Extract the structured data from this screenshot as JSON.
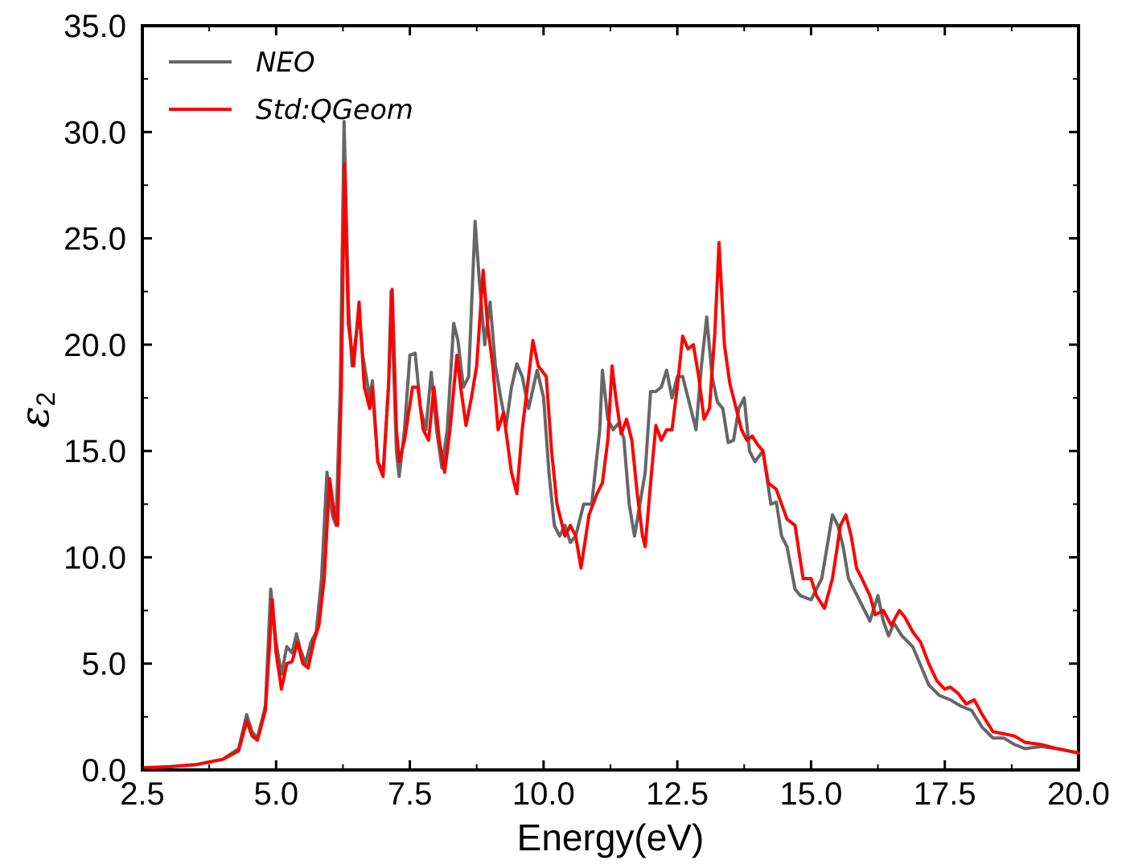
{
  "chart_data": {
    "type": "line",
    "xlabel": "Energy(eV)",
    "ylabel": {
      "symbol": "ε",
      "subscript": "2"
    },
    "xlim": [
      2.5,
      20.0
    ],
    "ylim": [
      0.0,
      35.0
    ],
    "xticks": [
      "2.5",
      "5.0",
      "7.5",
      "10.0",
      "12.5",
      "15.0",
      "17.5",
      "20.0"
    ],
    "yticks": [
      "0.0",
      "5.0",
      "10.0",
      "15.0",
      "20.0",
      "25.0",
      "30.0",
      "35.0"
    ],
    "grid": false,
    "legend_position": "top-left",
    "series": [
      {
        "name": "NEO",
        "color": "#666666",
        "points": [
          [
            2.5,
            0.1
          ],
          [
            3.0,
            0.15
          ],
          [
            3.5,
            0.25
          ],
          [
            4.0,
            0.5
          ],
          [
            4.3,
            1.0
          ],
          [
            4.45,
            2.6
          ],
          [
            4.55,
            1.8
          ],
          [
            4.65,
            1.5
          ],
          [
            4.8,
            3.0
          ],
          [
            4.9,
            8.5
          ],
          [
            5.0,
            6.0
          ],
          [
            5.1,
            4.5
          ],
          [
            5.2,
            5.8
          ],
          [
            5.3,
            5.5
          ],
          [
            5.38,
            6.4
          ],
          [
            5.45,
            5.7
          ],
          [
            5.55,
            5.0
          ],
          [
            5.65,
            6.0
          ],
          [
            5.75,
            6.5
          ],
          [
            5.85,
            9.0
          ],
          [
            5.95,
            14.0
          ],
          [
            6.05,
            12.0
          ],
          [
            6.12,
            11.5
          ],
          [
            6.2,
            18.0
          ],
          [
            6.27,
            30.5
          ],
          [
            6.35,
            22.0
          ],
          [
            6.42,
            19.0
          ],
          [
            6.55,
            21.5
          ],
          [
            6.62,
            19.5
          ],
          [
            6.75,
            17.5
          ],
          [
            6.8,
            18.3
          ],
          [
            6.9,
            14.5
          ],
          [
            7.0,
            14.0
          ],
          [
            7.1,
            18.0
          ],
          [
            7.15,
            22.5
          ],
          [
            7.25,
            15.0
          ],
          [
            7.3,
            13.8
          ],
          [
            7.4,
            16.0
          ],
          [
            7.5,
            19.5
          ],
          [
            7.6,
            19.6
          ],
          [
            7.7,
            17.0
          ],
          [
            7.8,
            16.0
          ],
          [
            7.9,
            18.7
          ],
          [
            8.0,
            16.0
          ],
          [
            8.1,
            14.2
          ],
          [
            8.2,
            16.0
          ],
          [
            8.32,
            21.0
          ],
          [
            8.4,
            20.2
          ],
          [
            8.5,
            18.0
          ],
          [
            8.6,
            18.5
          ],
          [
            8.72,
            25.8
          ],
          [
            8.8,
            23.0
          ],
          [
            8.9,
            20.0
          ],
          [
            9.0,
            22.0
          ],
          [
            9.1,
            19.0
          ],
          [
            9.2,
            17.5
          ],
          [
            9.3,
            16.2
          ],
          [
            9.4,
            18.0
          ],
          [
            9.5,
            19.1
          ],
          [
            9.6,
            18.5
          ],
          [
            9.72,
            17.0
          ],
          [
            9.88,
            18.8
          ],
          [
            10.0,
            17.5
          ],
          [
            10.1,
            14.0
          ],
          [
            10.2,
            11.5
          ],
          [
            10.3,
            11.0
          ],
          [
            10.4,
            11.5
          ],
          [
            10.5,
            10.7
          ],
          [
            10.6,
            11.0
          ],
          [
            10.75,
            12.5
          ],
          [
            10.9,
            12.5
          ],
          [
            11.05,
            16.0
          ],
          [
            11.1,
            18.8
          ],
          [
            11.2,
            16.5
          ],
          [
            11.3,
            16.0
          ],
          [
            11.4,
            16.3
          ],
          [
            11.5,
            15.6
          ],
          [
            11.6,
            12.5
          ],
          [
            11.7,
            11.0
          ],
          [
            11.8,
            12.5
          ],
          [
            11.9,
            14.0
          ],
          [
            12.0,
            17.8
          ],
          [
            12.1,
            17.8
          ],
          [
            12.2,
            18.0
          ],
          [
            12.3,
            18.8
          ],
          [
            12.4,
            17.5
          ],
          [
            12.5,
            18.5
          ],
          [
            12.6,
            18.5
          ],
          [
            12.75,
            17.0
          ],
          [
            12.85,
            16.0
          ],
          [
            12.95,
            19.0
          ],
          [
            13.05,
            21.3
          ],
          [
            13.15,
            18.5
          ],
          [
            13.25,
            17.3
          ],
          [
            13.35,
            17.0
          ],
          [
            13.45,
            15.4
          ],
          [
            13.55,
            15.5
          ],
          [
            13.65,
            17.0
          ],
          [
            13.75,
            17.5
          ],
          [
            13.85,
            15.0
          ],
          [
            13.95,
            14.5
          ],
          [
            14.1,
            15.0
          ],
          [
            14.25,
            12.5
          ],
          [
            14.35,
            12.6
          ],
          [
            14.45,
            11.0
          ],
          [
            14.55,
            10.5
          ],
          [
            14.7,
            8.5
          ],
          [
            14.8,
            8.2
          ],
          [
            15.0,
            8.0
          ],
          [
            15.2,
            9.0
          ],
          [
            15.4,
            12.0
          ],
          [
            15.5,
            11.5
          ],
          [
            15.6,
            10.5
          ],
          [
            15.7,
            9.0
          ],
          [
            15.9,
            8.0
          ],
          [
            16.1,
            7.0
          ],
          [
            16.25,
            8.2
          ],
          [
            16.35,
            7.0
          ],
          [
            16.45,
            6.3
          ],
          [
            16.55,
            6.9
          ],
          [
            16.7,
            6.3
          ],
          [
            16.9,
            5.8
          ],
          [
            17.0,
            5.2
          ],
          [
            17.2,
            4.0
          ],
          [
            17.4,
            3.5
          ],
          [
            17.6,
            3.3
          ],
          [
            17.8,
            3.0
          ],
          [
            18.0,
            2.8
          ],
          [
            18.2,
            2.0
          ],
          [
            18.4,
            1.5
          ],
          [
            18.6,
            1.5
          ],
          [
            18.8,
            1.2
          ],
          [
            19.0,
            1.0
          ],
          [
            19.3,
            1.1
          ],
          [
            19.6,
            1.0
          ],
          [
            20.0,
            0.8
          ]
        ]
      },
      {
        "name": "Std:QGeom",
        "color": "#ff0000",
        "points": [
          [
            2.5,
            0.1
          ],
          [
            3.0,
            0.15
          ],
          [
            3.5,
            0.25
          ],
          [
            4.0,
            0.5
          ],
          [
            4.3,
            0.9
          ],
          [
            4.45,
            2.3
          ],
          [
            4.55,
            1.6
          ],
          [
            4.65,
            1.4
          ],
          [
            4.8,
            2.8
          ],
          [
            4.93,
            8.0
          ],
          [
            5.0,
            5.5
          ],
          [
            5.1,
            3.8
          ],
          [
            5.2,
            5.0
          ],
          [
            5.3,
            5.1
          ],
          [
            5.4,
            6.0
          ],
          [
            5.5,
            5.0
          ],
          [
            5.6,
            4.8
          ],
          [
            5.7,
            6.0
          ],
          [
            5.8,
            6.8
          ],
          [
            5.9,
            9.0
          ],
          [
            6.0,
            13.7
          ],
          [
            6.1,
            11.8
          ],
          [
            6.15,
            11.5
          ],
          [
            6.22,
            18.0
          ],
          [
            6.28,
            28.5
          ],
          [
            6.35,
            21.0
          ],
          [
            6.45,
            19.0
          ],
          [
            6.55,
            22.0
          ],
          [
            6.65,
            18.0
          ],
          [
            6.75,
            17.0
          ],
          [
            6.8,
            18.0
          ],
          [
            6.9,
            14.5
          ],
          [
            7.0,
            13.8
          ],
          [
            7.1,
            18.0
          ],
          [
            7.17,
            22.6
          ],
          [
            7.25,
            16.0
          ],
          [
            7.3,
            14.5
          ],
          [
            7.4,
            15.5
          ],
          [
            7.55,
            18.0
          ],
          [
            7.65,
            18.0
          ],
          [
            7.75,
            16.0
          ],
          [
            7.85,
            15.5
          ],
          [
            7.95,
            18.0
          ],
          [
            8.05,
            15.5
          ],
          [
            8.15,
            14.0
          ],
          [
            8.25,
            16.0
          ],
          [
            8.38,
            19.5
          ],
          [
            8.45,
            18.0
          ],
          [
            8.55,
            16.2
          ],
          [
            8.65,
            17.5
          ],
          [
            8.75,
            19.0
          ],
          [
            8.87,
            23.5
          ],
          [
            8.95,
            21.0
          ],
          [
            9.05,
            19.0
          ],
          [
            9.15,
            16.0
          ],
          [
            9.25,
            16.8
          ],
          [
            9.4,
            14.0
          ],
          [
            9.5,
            13.0
          ],
          [
            9.6,
            16.0
          ],
          [
            9.8,
            20.2
          ],
          [
            9.9,
            19.0
          ],
          [
            10.05,
            18.5
          ],
          [
            10.15,
            15.0
          ],
          [
            10.25,
            12.5
          ],
          [
            10.4,
            11.0
          ],
          [
            10.5,
            11.5
          ],
          [
            10.6,
            11.0
          ],
          [
            10.7,
            9.5
          ],
          [
            10.85,
            12.0
          ],
          [
            11.0,
            13.0
          ],
          [
            11.1,
            13.5
          ],
          [
            11.2,
            15.5
          ],
          [
            11.28,
            19.0
          ],
          [
            11.35,
            17.5
          ],
          [
            11.45,
            15.8
          ],
          [
            11.55,
            16.5
          ],
          [
            11.65,
            15.5
          ],
          [
            11.75,
            13.0
          ],
          [
            11.85,
            11.0
          ],
          [
            11.9,
            10.5
          ],
          [
            12.0,
            13.5
          ],
          [
            12.1,
            16.2
          ],
          [
            12.2,
            15.5
          ],
          [
            12.3,
            16.0
          ],
          [
            12.4,
            16.0
          ],
          [
            12.5,
            18.0
          ],
          [
            12.6,
            20.4
          ],
          [
            12.7,
            19.8
          ],
          [
            12.8,
            20.0
          ],
          [
            12.9,
            18.5
          ],
          [
            13.0,
            16.5
          ],
          [
            13.1,
            17.0
          ],
          [
            13.2,
            20.5
          ],
          [
            13.28,
            24.8
          ],
          [
            13.38,
            20.0
          ],
          [
            13.48,
            18.2
          ],
          [
            13.6,
            17.0
          ],
          [
            13.7,
            16.0
          ],
          [
            13.8,
            15.5
          ],
          [
            13.9,
            15.7
          ],
          [
            14.0,
            15.3
          ],
          [
            14.1,
            15.0
          ],
          [
            14.2,
            13.5
          ],
          [
            14.35,
            13.2
          ],
          [
            14.45,
            12.5
          ],
          [
            14.55,
            11.8
          ],
          [
            14.7,
            11.5
          ],
          [
            14.85,
            9.0
          ],
          [
            15.0,
            9.0
          ],
          [
            15.1,
            8.2
          ],
          [
            15.25,
            7.6
          ],
          [
            15.4,
            9.0
          ],
          [
            15.55,
            11.5
          ],
          [
            15.65,
            12.0
          ],
          [
            15.75,
            11.0
          ],
          [
            15.85,
            9.5
          ],
          [
            15.95,
            9.0
          ],
          [
            16.1,
            8.2
          ],
          [
            16.2,
            7.3
          ],
          [
            16.35,
            7.5
          ],
          [
            16.5,
            6.8
          ],
          [
            16.65,
            7.5
          ],
          [
            16.75,
            7.2
          ],
          [
            16.9,
            6.5
          ],
          [
            17.05,
            6.0
          ],
          [
            17.2,
            5.0
          ],
          [
            17.35,
            4.2
          ],
          [
            17.5,
            3.8
          ],
          [
            17.6,
            3.9
          ],
          [
            17.75,
            3.6
          ],
          [
            17.9,
            3.1
          ],
          [
            18.05,
            3.3
          ],
          [
            18.2,
            2.6
          ],
          [
            18.4,
            1.8
          ],
          [
            18.6,
            1.7
          ],
          [
            18.8,
            1.6
          ],
          [
            19.0,
            1.3
          ],
          [
            19.3,
            1.2
          ],
          [
            19.6,
            1.0
          ],
          [
            20.0,
            0.8
          ]
        ]
      }
    ]
  }
}
